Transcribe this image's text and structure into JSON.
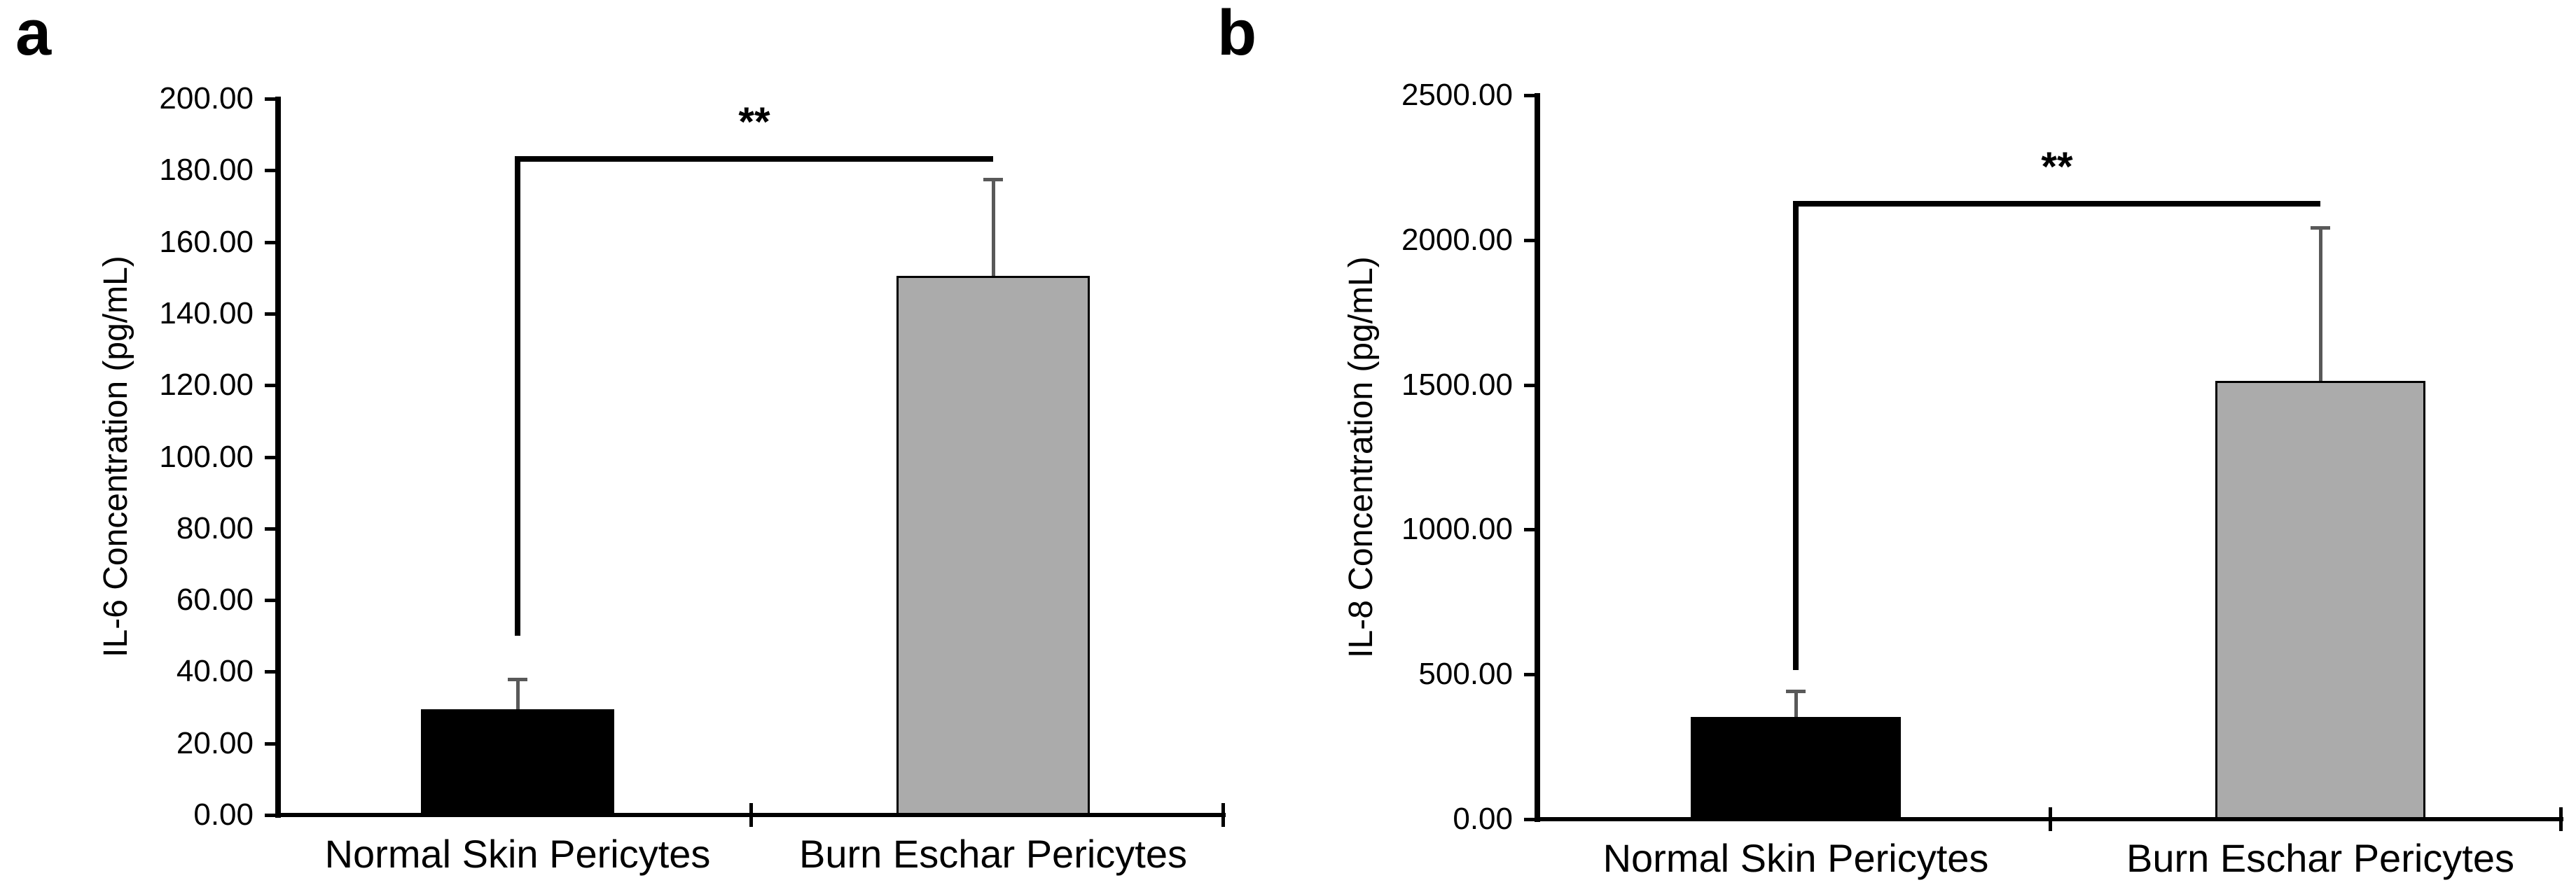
{
  "figure": {
    "background": "#ffffff",
    "text_color": "#000000",
    "error_bar_color": "#595959"
  },
  "chart_data": [
    {
      "type": "bar",
      "panel_label": "a",
      "ylabel": "IL-6 Concentration (pg/mL)",
      "xlabel": "",
      "ylim": [
        0,
        200
      ],
      "ytick_step": 20,
      "ytick_labels": [
        "200.00",
        "180.00",
        "160.00",
        "140.00",
        "120.00",
        "100.00",
        "80.00",
        "60.00",
        "40.00",
        "20.00",
        "0.00"
      ],
      "grid": false,
      "legend": "none",
      "categories": [
        "Normal Skin Pericytes",
        "Burn Eschar Pericytes"
      ],
      "values": [
        29.5,
        150.5
      ],
      "errors_upper": [
        8.5,
        27
      ],
      "bar_colors": [
        "#000000",
        "#ababab"
      ],
      "significance": {
        "label": "**",
        "between": [
          0,
          1
        ],
        "bracket_y": 184,
        "bracket_drop_left_to": 50
      }
    },
    {
      "type": "bar",
      "panel_label": "b",
      "ylabel": "IL-8 Concentration (pg/mL)",
      "xlabel": "",
      "ylim": [
        0,
        2500
      ],
      "ytick_step": 500,
      "ytick_labels": [
        "2500.00",
        "2000.00",
        "1500.00",
        "1000.00",
        "500.00",
        "0.00"
      ],
      "grid": false,
      "legend": "none",
      "categories": [
        "Normal Skin Pericytes",
        "Burn Eschar Pericytes"
      ],
      "values": [
        353,
        1513
      ],
      "errors_upper": [
        89,
        530
      ],
      "bar_colors": [
        "#000000",
        "#ababab"
      ],
      "significance": {
        "label": "**",
        "between": [
          0,
          1
        ],
        "bracket_y": 2135,
        "bracket_drop_left_to": 515
      }
    }
  ]
}
